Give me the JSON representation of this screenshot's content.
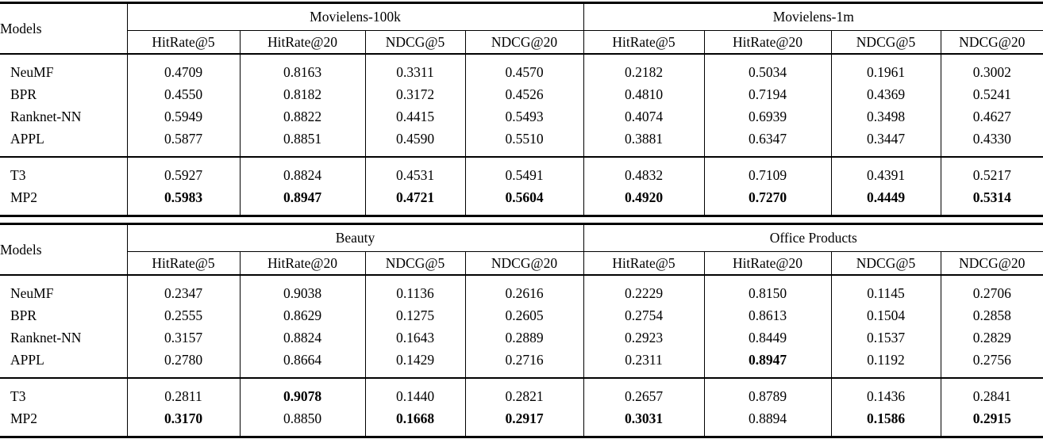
{
  "colors": {
    "text": "#000000",
    "rule": "#000000",
    "background": "#ffffff"
  },
  "tables": [
    {
      "models_header": "Models",
      "groups": [
        {
          "label": "Movielens-100k",
          "metrics": [
            "HitRate@5",
            "HitRate@20",
            "NDCG@5",
            "NDCG@20"
          ]
        },
        {
          "label": "Movielens-1m",
          "metrics": [
            "HitRate@5",
            "HitRate@20",
            "NDCG@5",
            "NDCG@20"
          ]
        }
      ],
      "sections": [
        {
          "rows": [
            {
              "model": "NeuMF",
              "values": [
                {
                  "v": "0.4709",
                  "bold": false
                },
                {
                  "v": "0.8163",
                  "bold": false
                },
                {
                  "v": "0.3311",
                  "bold": false
                },
                {
                  "v": "0.4570",
                  "bold": false
                },
                {
                  "v": "0.2182",
                  "bold": false
                },
                {
                  "v": "0.5034",
                  "bold": false
                },
                {
                  "v": "0.1961",
                  "bold": false
                },
                {
                  "v": "0.3002",
                  "bold": false
                }
              ]
            },
            {
              "model": "BPR",
              "values": [
                {
                  "v": "0.4550",
                  "bold": false
                },
                {
                  "v": "0.8182",
                  "bold": false
                },
                {
                  "v": "0.3172",
                  "bold": false
                },
                {
                  "v": "0.4526",
                  "bold": false
                },
                {
                  "v": "0.4810",
                  "bold": false
                },
                {
                  "v": "0.7194",
                  "bold": false
                },
                {
                  "v": "0.4369",
                  "bold": false
                },
                {
                  "v": "0.5241",
                  "bold": false
                }
              ]
            },
            {
              "model": "Ranknet-NN",
              "values": [
                {
                  "v": "0.5949",
                  "bold": false
                },
                {
                  "v": "0.8822",
                  "bold": false
                },
                {
                  "v": "0.4415",
                  "bold": false
                },
                {
                  "v": "0.5493",
                  "bold": false
                },
                {
                  "v": "0.4074",
                  "bold": false
                },
                {
                  "v": "0.6939",
                  "bold": false
                },
                {
                  "v": "0.3498",
                  "bold": false
                },
                {
                  "v": "0.4627",
                  "bold": false
                }
              ]
            },
            {
              "model": "APPL",
              "values": [
                {
                  "v": "0.5877",
                  "bold": false
                },
                {
                  "v": "0.8851",
                  "bold": false
                },
                {
                  "v": "0.4590",
                  "bold": false
                },
                {
                  "v": "0.5510",
                  "bold": false
                },
                {
                  "v": "0.3881",
                  "bold": false
                },
                {
                  "v": "0.6347",
                  "bold": false
                },
                {
                  "v": "0.3447",
                  "bold": false
                },
                {
                  "v": "0.4330",
                  "bold": false
                }
              ]
            }
          ]
        },
        {
          "rows": [
            {
              "model": "T3",
              "values": [
                {
                  "v": "0.5927",
                  "bold": false
                },
                {
                  "v": "0.8824",
                  "bold": false
                },
                {
                  "v": "0.4531",
                  "bold": false
                },
                {
                  "v": "0.5491",
                  "bold": false
                },
                {
                  "v": "0.4832",
                  "bold": false
                },
                {
                  "v": "0.7109",
                  "bold": false
                },
                {
                  "v": "0.4391",
                  "bold": false
                },
                {
                  "v": "0.5217",
                  "bold": false
                }
              ]
            },
            {
              "model": "MP2",
              "values": [
                {
                  "v": "0.5983",
                  "bold": true
                },
                {
                  "v": "0.8947",
                  "bold": true
                },
                {
                  "v": "0.4721",
                  "bold": true
                },
                {
                  "v": "0.5604",
                  "bold": true
                },
                {
                  "v": "0.4920",
                  "bold": true
                },
                {
                  "v": "0.7270",
                  "bold": true
                },
                {
                  "v": "0.4449",
                  "bold": true
                },
                {
                  "v": "0.5314",
                  "bold": true
                }
              ]
            }
          ]
        }
      ]
    },
    {
      "models_header": "Models",
      "groups": [
        {
          "label": "Beauty",
          "metrics": [
            "HitRate@5",
            "HitRate@20",
            "NDCG@5",
            "NDCG@20"
          ]
        },
        {
          "label": "Office Products",
          "metrics": [
            "HitRate@5",
            "HitRate@20",
            "NDCG@5",
            "NDCG@20"
          ]
        }
      ],
      "sections": [
        {
          "rows": [
            {
              "model": "NeuMF",
              "values": [
                {
                  "v": "0.2347",
                  "bold": false
                },
                {
                  "v": "0.9038",
                  "bold": false
                },
                {
                  "v": "0.1136",
                  "bold": false
                },
                {
                  "v": "0.2616",
                  "bold": false
                },
                {
                  "v": "0.2229",
                  "bold": false
                },
                {
                  "v": "0.8150",
                  "bold": false
                },
                {
                  "v": "0.1145",
                  "bold": false
                },
                {
                  "v": "0.2706",
                  "bold": false
                }
              ]
            },
            {
              "model": "BPR",
              "values": [
                {
                  "v": "0.2555",
                  "bold": false
                },
                {
                  "v": "0.8629",
                  "bold": false
                },
                {
                  "v": "0.1275",
                  "bold": false
                },
                {
                  "v": "0.2605",
                  "bold": false
                },
                {
                  "v": "0.2754",
                  "bold": false
                },
                {
                  "v": "0.8613",
                  "bold": false
                },
                {
                  "v": "0.1504",
                  "bold": false
                },
                {
                  "v": "0.2858",
                  "bold": false
                }
              ]
            },
            {
              "model": "Ranknet-NN",
              "values": [
                {
                  "v": "0.3157",
                  "bold": false
                },
                {
                  "v": "0.8824",
                  "bold": false
                },
                {
                  "v": "0.1643",
                  "bold": false
                },
                {
                  "v": "0.2889",
                  "bold": false
                },
                {
                  "v": "0.2923",
                  "bold": false
                },
                {
                  "v": "0.8449",
                  "bold": false
                },
                {
                  "v": "0.1537",
                  "bold": false
                },
                {
                  "v": "0.2829",
                  "bold": false
                }
              ]
            },
            {
              "model": "APPL",
              "values": [
                {
                  "v": "0.2780",
                  "bold": false
                },
                {
                  "v": "0.8664",
                  "bold": false
                },
                {
                  "v": "0.1429",
                  "bold": false
                },
                {
                  "v": "0.2716",
                  "bold": false
                },
                {
                  "v": "0.2311",
                  "bold": false
                },
                {
                  "v": "0.8947",
                  "bold": true
                },
                {
                  "v": "0.1192",
                  "bold": false
                },
                {
                  "v": "0.2756",
                  "bold": false
                }
              ]
            }
          ]
        },
        {
          "rows": [
            {
              "model": "T3",
              "values": [
                {
                  "v": "0.2811",
                  "bold": false
                },
                {
                  "v": "0.9078",
                  "bold": true
                },
                {
                  "v": "0.1440",
                  "bold": false
                },
                {
                  "v": "0.2821",
                  "bold": false
                },
                {
                  "v": "0.2657",
                  "bold": false
                },
                {
                  "v": "0.8789",
                  "bold": false
                },
                {
                  "v": "0.1436",
                  "bold": false
                },
                {
                  "v": "0.2841",
                  "bold": false
                }
              ]
            },
            {
              "model": "MP2",
              "values": [
                {
                  "v": "0.3170",
                  "bold": true
                },
                {
                  "v": "0.8850",
                  "bold": false
                },
                {
                  "v": "0.1668",
                  "bold": true
                },
                {
                  "v": "0.2917",
                  "bold": true
                },
                {
                  "v": "0.3031",
                  "bold": true
                },
                {
                  "v": "0.8894",
                  "bold": false
                },
                {
                  "v": "0.1586",
                  "bold": true
                },
                {
                  "v": "0.2915",
                  "bold": true
                }
              ]
            }
          ]
        }
      ]
    }
  ]
}
